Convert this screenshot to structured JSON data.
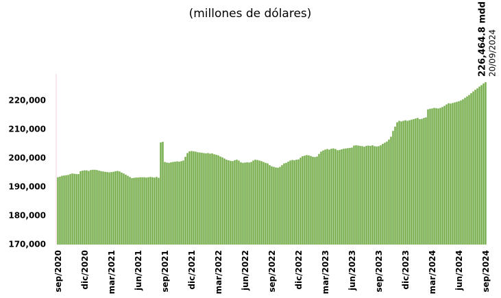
{
  "chart_data": {
    "type": "bar",
    "title": "(millones de dólares)",
    "annotation": "226,464.8 mdd",
    "annotation_date": "20/09/2024",
    "color": "#74ac4a",
    "grid": false,
    "ylim": [
      170000,
      230000
    ],
    "yticks": [
      {
        "value": 170000,
        "label": "170,000"
      },
      {
        "value": 180000,
        "label": "180,000"
      },
      {
        "value": 190000,
        "label": "190,000"
      },
      {
        "value": 200000,
        "label": "200,000"
      },
      {
        "value": 210000,
        "label": "210,000"
      },
      {
        "value": 220000,
        "label": "220,000"
      }
    ],
    "categories": [
      "sep/2020",
      null,
      null,
      null,
      null,
      null,
      null,
      null,
      null,
      null,
      null,
      null,
      null,
      "dic/2020",
      null,
      null,
      null,
      null,
      null,
      null,
      null,
      null,
      null,
      null,
      null,
      null,
      "mar/2021",
      null,
      null,
      null,
      null,
      null,
      null,
      null,
      null,
      null,
      null,
      null,
      null,
      "jun/2021",
      null,
      null,
      null,
      null,
      null,
      null,
      null,
      null,
      null,
      null,
      null,
      null,
      "sep/2021",
      null,
      null,
      null,
      null,
      null,
      null,
      null,
      null,
      null,
      null,
      null,
      null,
      "dic/2021",
      null,
      null,
      null,
      null,
      null,
      null,
      null,
      null,
      null,
      null,
      null,
      null,
      "mar/2022",
      null,
      null,
      null,
      null,
      null,
      null,
      null,
      null,
      null,
      null,
      null,
      null,
      "jun/2022",
      null,
      null,
      null,
      null,
      null,
      null,
      null,
      null,
      null,
      null,
      null,
      null,
      "sep/2022",
      null,
      null,
      null,
      null,
      null,
      null,
      null,
      null,
      null,
      null,
      null,
      null,
      "dic/2022",
      null,
      null,
      null,
      null,
      null,
      null,
      null,
      null,
      null,
      null,
      null,
      null,
      "mar/2023",
      null,
      null,
      null,
      null,
      null,
      null,
      null,
      null,
      null,
      null,
      null,
      null,
      "jun/2023",
      null,
      null,
      null,
      null,
      null,
      null,
      null,
      null,
      null,
      null,
      null,
      null,
      "sep/2023",
      null,
      null,
      null,
      null,
      null,
      null,
      null,
      null,
      null,
      null,
      null,
      null,
      "dic/2023",
      null,
      null,
      null,
      null,
      null,
      null,
      null,
      null,
      null,
      null,
      null,
      null,
      "mar/2024",
      null,
      null,
      null,
      null,
      null,
      null,
      null,
      null,
      null,
      null,
      null,
      null,
      "jun/2024",
      null,
      null,
      null,
      null,
      null,
      null,
      null,
      null,
      null,
      null,
      null,
      null,
      "sep/2024"
    ],
    "values": [
      193400,
      193600,
      193900,
      194000,
      194100,
      194200,
      194500,
      194700,
      194600,
      194500,
      194500,
      195500,
      195700,
      195800,
      195800,
      195600,
      195900,
      196000,
      196000,
      195900,
      195700,
      195500,
      195400,
      195300,
      195200,
      195100,
      195200,
      195300,
      195500,
      195600,
      195400,
      195000,
      194700,
      194300,
      193900,
      193500,
      193100,
      193200,
      193300,
      193300,
      193400,
      193400,
      193400,
      193300,
      193400,
      193500,
      193400,
      193300,
      193500,
      193200,
      205500,
      205700,
      198700,
      198500,
      198400,
      198600,
      198700,
      198800,
      198900,
      198800,
      199000,
      199200,
      200500,
      201800,
      202400,
      202500,
      202400,
      202300,
      202100,
      202000,
      201900,
      201800,
      201700,
      201800,
      201600,
      201700,
      201400,
      201200,
      201000,
      200600,
      200300,
      199900,
      199500,
      199300,
      199100,
      199000,
      199300,
      199500,
      199200,
      198600,
      198400,
      198500,
      198600,
      198500,
      198700,
      199200,
      199500,
      199400,
      199200,
      199000,
      198700,
      198400,
      198200,
      197600,
      197200,
      197000,
      196800,
      196700,
      197000,
      197600,
      198200,
      198400,
      198800,
      199200,
      199400,
      199300,
      199500,
      199600,
      200200,
      200700,
      200900,
      201100,
      201000,
      200800,
      200500,
      200400,
      200600,
      201500,
      202300,
      202700,
      203000,
      203200,
      203000,
      203300,
      203400,
      203200,
      202800,
      202900,
      203100,
      203300,
      203400,
      203500,
      203600,
      203700,
      204400,
      204500,
      204400,
      204300,
      204200,
      204000,
      204300,
      204400,
      204300,
      204500,
      204200,
      204100,
      204200,
      204500,
      205000,
      205400,
      205800,
      206500,
      207500,
      209500,
      211000,
      212500,
      213000,
      212800,
      213000,
      213200,
      213000,
      213200,
      213400,
      213600,
      213800,
      214000,
      213600,
      213700,
      214000,
      214200,
      217000,
      217200,
      217300,
      217500,
      217400,
      217300,
      217500,
      217800,
      218200,
      218700,
      219100,
      219000,
      219200,
      219400,
      219600,
      219800,
      220100,
      220500,
      221000,
      221500,
      222000,
      222600,
      223200,
      223800,
      224300,
      224900,
      225400,
      226000,
      226464.8
    ]
  }
}
